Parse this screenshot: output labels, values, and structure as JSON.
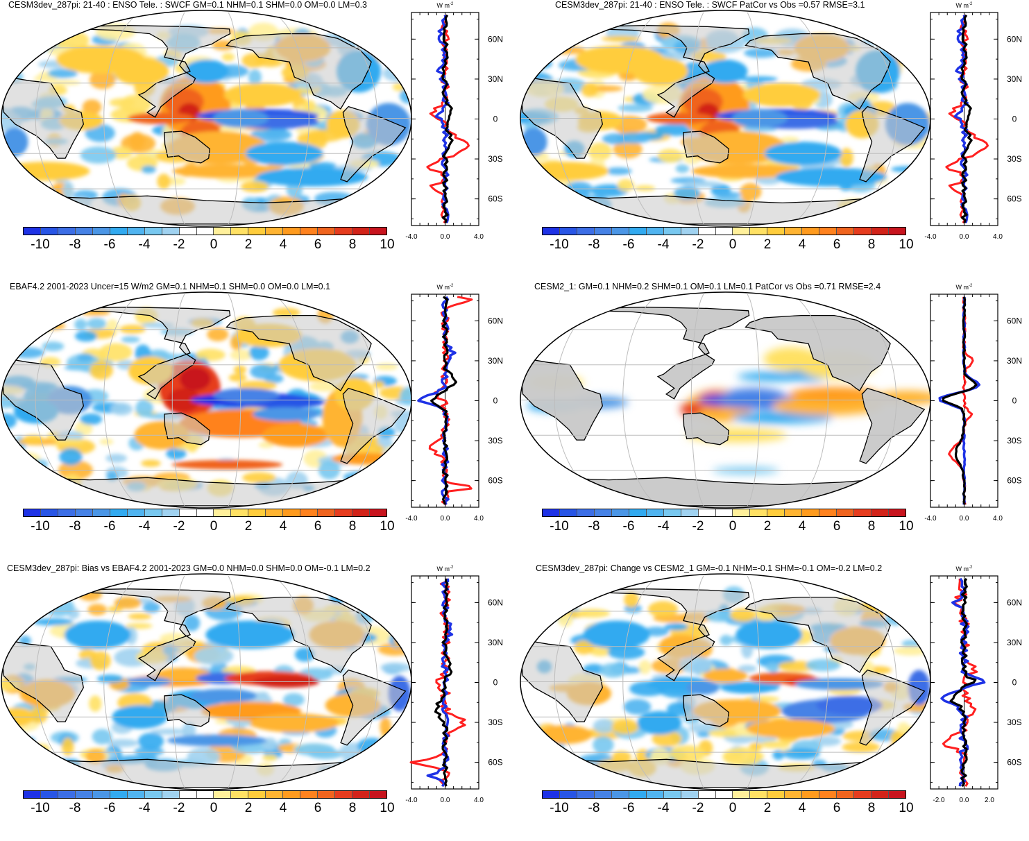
{
  "colors": {
    "scale": [
      "#1e32e6",
      "#2855e6",
      "#3c6ee6",
      "#4682e6",
      "#4b96e6",
      "#32aaf0",
      "#50b4f0",
      "#78c8f0",
      "#a0d2f0",
      "#ffffff",
      "#ffffff",
      "#fff09b",
      "#ffe164",
      "#ffcd3c",
      "#ffb432",
      "#ff9b1e",
      "#ff821e",
      "#f0641e",
      "#e63c1e",
      "#d22319",
      "#c8141e"
    ],
    "land": "#c8c8c8",
    "line_red": "#ff2020",
    "line_blue": "#1e32e6",
    "line_black": "#000000"
  },
  "colorbar_labels": [
    "-10",
    "-8",
    "-6",
    "-4",
    "-2",
    "0",
    "2",
    "4",
    "6",
    "8",
    "10"
  ],
  "panels": [
    {
      "id": "p1",
      "title": "CESM3dev_287pi: 21-40 : ENSO Tele. : SWCF GM=0.1 NHM=0.1 SHM=0.0 OM=0.0 LM=0.3",
      "zonal_units": "W m",
      "zonal_units_sup": "-2",
      "zonal_xticks": [
        "-4.0",
        "0.0",
        "4.0"
      ],
      "zonal_lat_labels": [
        "60N",
        "30N",
        "0",
        "30S",
        "60S"
      ]
    },
    {
      "id": "p2",
      "title": "CESM3dev_287pi: 21-40 : ENSO Tele. : SWCF PatCor vs Obs =0.57 RMSE=3.1",
      "zonal_units": "W m",
      "zonal_units_sup": "-2",
      "zonal_xticks": [
        "-4.0",
        "0.0",
        "4.0"
      ],
      "zonal_lat_labels": [
        "60N",
        "30N",
        "0",
        "30S",
        "60S"
      ]
    },
    {
      "id": "p3",
      "title": "EBAF4.2 2001-2023 Uncer=15 W/m2 GM=0.1 NHM=0.1 SHM=0.0 OM=0.0 LM=0.1",
      "zonal_units": "W m",
      "zonal_units_sup": "-2",
      "zonal_xticks": [
        "-4.0",
        "0.0",
        "4.0"
      ],
      "zonal_lat_labels": [
        "60N",
        "30N",
        "0",
        "30S",
        "60S"
      ]
    },
    {
      "id": "p4",
      "title": "CESM2_1: GM=0.1 NHM=0.2 SHM=0.1 OM=0.1 LM=0.1 PatCor vs Obs =0.71 RMSE=2.4",
      "zonal_units": "W m",
      "zonal_units_sup": "-2",
      "zonal_xticks": [
        "-4.0",
        "0.0",
        "4.0"
      ],
      "zonal_lat_labels": [
        "60N",
        "30N",
        "0",
        "30S",
        "60S"
      ]
    },
    {
      "id": "p5",
      "title": "CESM3dev_287pi: Bias vs EBAF4.2 2001-2023 GM=0.0 NHM=0.0 SHM=0.0 OM=-0.1 LM=0.2",
      "zonal_units": "W m",
      "zonal_units_sup": "-2",
      "zonal_xticks": [
        "-4.0",
        "0.0",
        "4.0"
      ],
      "zonal_lat_labels": [
        "60N",
        "30N",
        "0",
        "30S",
        "60S"
      ]
    },
    {
      "id": "p6",
      "title": "CESM3dev_287pi: Change vs CESM2_1 GM=-0.1 NHM=-0.1 SHM=-0.1 OM=-0.2 LM=0.2",
      "zonal_units": "W m",
      "zonal_units_sup": "-2",
      "zonal_xticks": [
        "-2.0",
        "0.0",
        "2.0"
      ],
      "zonal_lat_labels": [
        "60N",
        "30N",
        "0",
        "30S",
        "60S"
      ]
    }
  ]
}
